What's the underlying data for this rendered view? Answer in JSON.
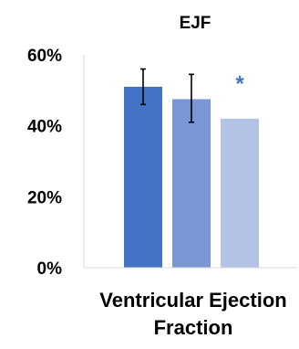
{
  "chart_data": {
    "type": "bar",
    "title": "EJF",
    "xlabel_lines": [
      "Ventricular Ejection",
      "Fraction"
    ],
    "ylabel": "",
    "ylim": [
      0,
      60
    ],
    "yticks": [
      {
        "value": 0,
        "label": "0%"
      },
      {
        "value": 20,
        "label": "20%"
      },
      {
        "value": 40,
        "label": "40%"
      },
      {
        "value": 60,
        "label": "60%"
      }
    ],
    "grid": false,
    "legend": "none",
    "series": [
      {
        "value": 51,
        "error_low": 46,
        "error_high": 56,
        "color": "#4472C4"
      },
      {
        "value": 47.5,
        "error_low": 41,
        "error_high": 54.5,
        "color": "#7B96D4"
      },
      {
        "value": 42,
        "color": "#B4C2E3"
      }
    ],
    "annotations": [
      {
        "text": "*",
        "series_index": 2,
        "y": 55,
        "color": "#4472C4"
      }
    ]
  }
}
